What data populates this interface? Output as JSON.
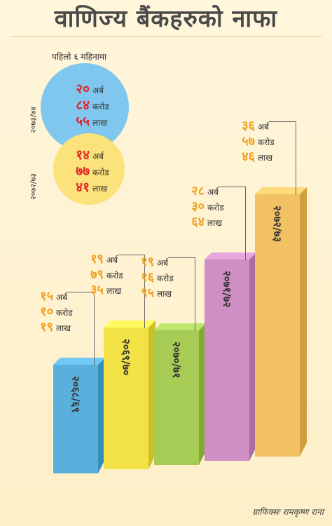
{
  "title": "वाणिज्य बैंकहरुको नाफा",
  "subtitle": "पहिलो ६ महिनामा",
  "units": {
    "arba": "अर्ब",
    "karod": "करोड",
    "lakh": "लाख"
  },
  "colors": {
    "bar1": "#5ab0dc",
    "bar2": "#f3e246",
    "bar3": "#a6cc55",
    "bar4": "#cf8ec4",
    "bar5": "#f2c161",
    "blue_circle": "#7fc7ee",
    "yellow_circle": "#fbe27a"
  },
  "credit": "ग्राफिक्सः रामकृष्ण राना",
  "chart_data": {
    "type": "bar",
    "title": "वाणिज्य बैंकहरुको नाफा",
    "subtitle": "पहिलो ६ महिनामा",
    "categories": [
      "२०६८/६९",
      "२०६९/७०",
      "२०७०/७१",
      "२०७१/७२",
      "२०७२/७३"
    ],
    "series": [
      {
        "values": [
          15.1019,
          19.7935,
          19.1695,
          28.3064,
          36.5746
        ],
        "labels": [
          {
            "arba": "१५",
            "karod": "१०",
            "lakh": "१९"
          },
          {
            "arba": "१९",
            "karod": "७९",
            "lakh": "३५"
          },
          {
            "arba": "१९",
            "karod": "१६",
            "lakh": "९५"
          },
          {
            "arba": "२८",
            "karod": "३०",
            "lakh": "६४"
          },
          {
            "arba": "३६",
            "karod": "५७",
            "lakh": "४६"
          }
        ]
      }
    ],
    "circles": [
      {
        "period": "२०७३/७४",
        "value": 20.8455,
        "arba": "२०",
        "karod": "८४",
        "lakh": "५५"
      },
      {
        "period": "२०७२/७३",
        "value": 14.7741,
        "arba": "१४",
        "karod": "७७",
        "lakh": "४१"
      }
    ]
  }
}
